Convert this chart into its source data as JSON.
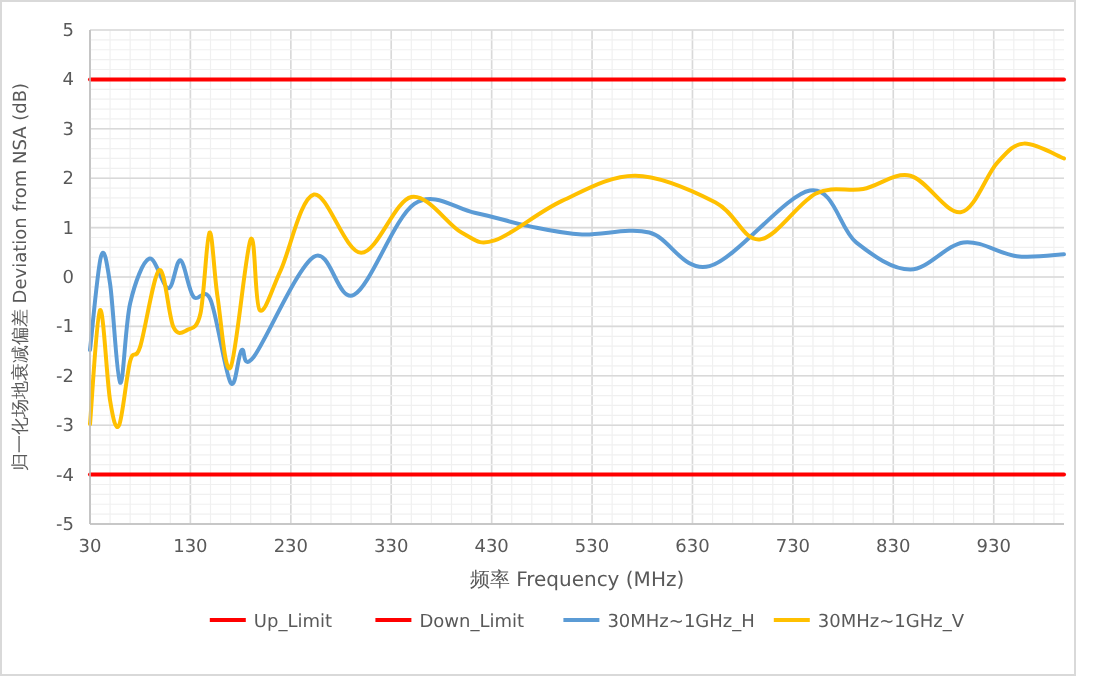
{
  "chart_data": {
    "type": "line",
    "xlabel": "频率 Frequency (MHz)",
    "ylabel": "归一化场地衰减偏差 Deviation from NSA (dB)",
    "xlim": [
      30,
      1000
    ],
    "ylim": [
      -5,
      5
    ],
    "xticks": [
      30,
      130,
      230,
      330,
      430,
      530,
      630,
      730,
      830,
      930
    ],
    "yticks": [
      -5,
      -4,
      -3,
      -2,
      -1,
      0,
      1,
      2,
      3,
      4,
      5
    ],
    "grid": true,
    "legend": "bottom",
    "marker": "none",
    "line_style": "solid",
    "series": [
      {
        "name": "Up_Limit",
        "color": "#ff0000",
        "x": [
          30,
          1000
        ],
        "values": [
          4,
          4
        ]
      },
      {
        "name": "Down_Limit",
        "color": "#ff0000",
        "x": [
          30,
          1000
        ],
        "values": [
          -4,
          -4
        ]
      },
      {
        "name": "30MHz~1GHz_H",
        "color": "#5b9bd5",
        "x": [
          30,
          41,
          50,
          60,
          70,
          89,
          108,
          120,
          133,
          150,
          170,
          181,
          193,
          253,
          293,
          353,
          413,
          467,
          520,
          587,
          647,
          747,
          793,
          847,
          900,
          953,
          1000
        ],
        "values": [
          -1.48,
          0.42,
          -0.14,
          -2.14,
          -0.53,
          0.37,
          -0.23,
          0.34,
          -0.4,
          -0.46,
          -2.14,
          -1.48,
          -1.62,
          0.41,
          -0.36,
          1.48,
          1.3,
          1.03,
          0.86,
          0.9,
          0.22,
          1.75,
          0.7,
          0.15,
          0.7,
          0.42,
          0.46
        ]
      },
      {
        "name": "30MHz~1GHz_V",
        "color": "#ffc000",
        "x": [
          30,
          40,
          50,
          59,
          70,
          80,
          99,
          113,
          127,
          140,
          149,
          157,
          170,
          190,
          199,
          220,
          253,
          300,
          350,
          400,
          433,
          500,
          573,
          653,
          697,
          753,
          800,
          847,
          897,
          933,
          960,
          1000
        ],
        "values": [
          -2.98,
          -0.67,
          -2.5,
          -3.0,
          -1.7,
          -1.41,
          0.14,
          -1.01,
          -1.07,
          -0.74,
          0.9,
          -0.4,
          -1.83,
          0.76,
          -0.67,
          0.14,
          1.67,
          0.49,
          1.62,
          0.9,
          0.74,
          1.54,
          2.05,
          1.51,
          0.76,
          1.69,
          1.78,
          2.05,
          1.31,
          2.3,
          2.7,
          2.4
        ]
      }
    ]
  }
}
